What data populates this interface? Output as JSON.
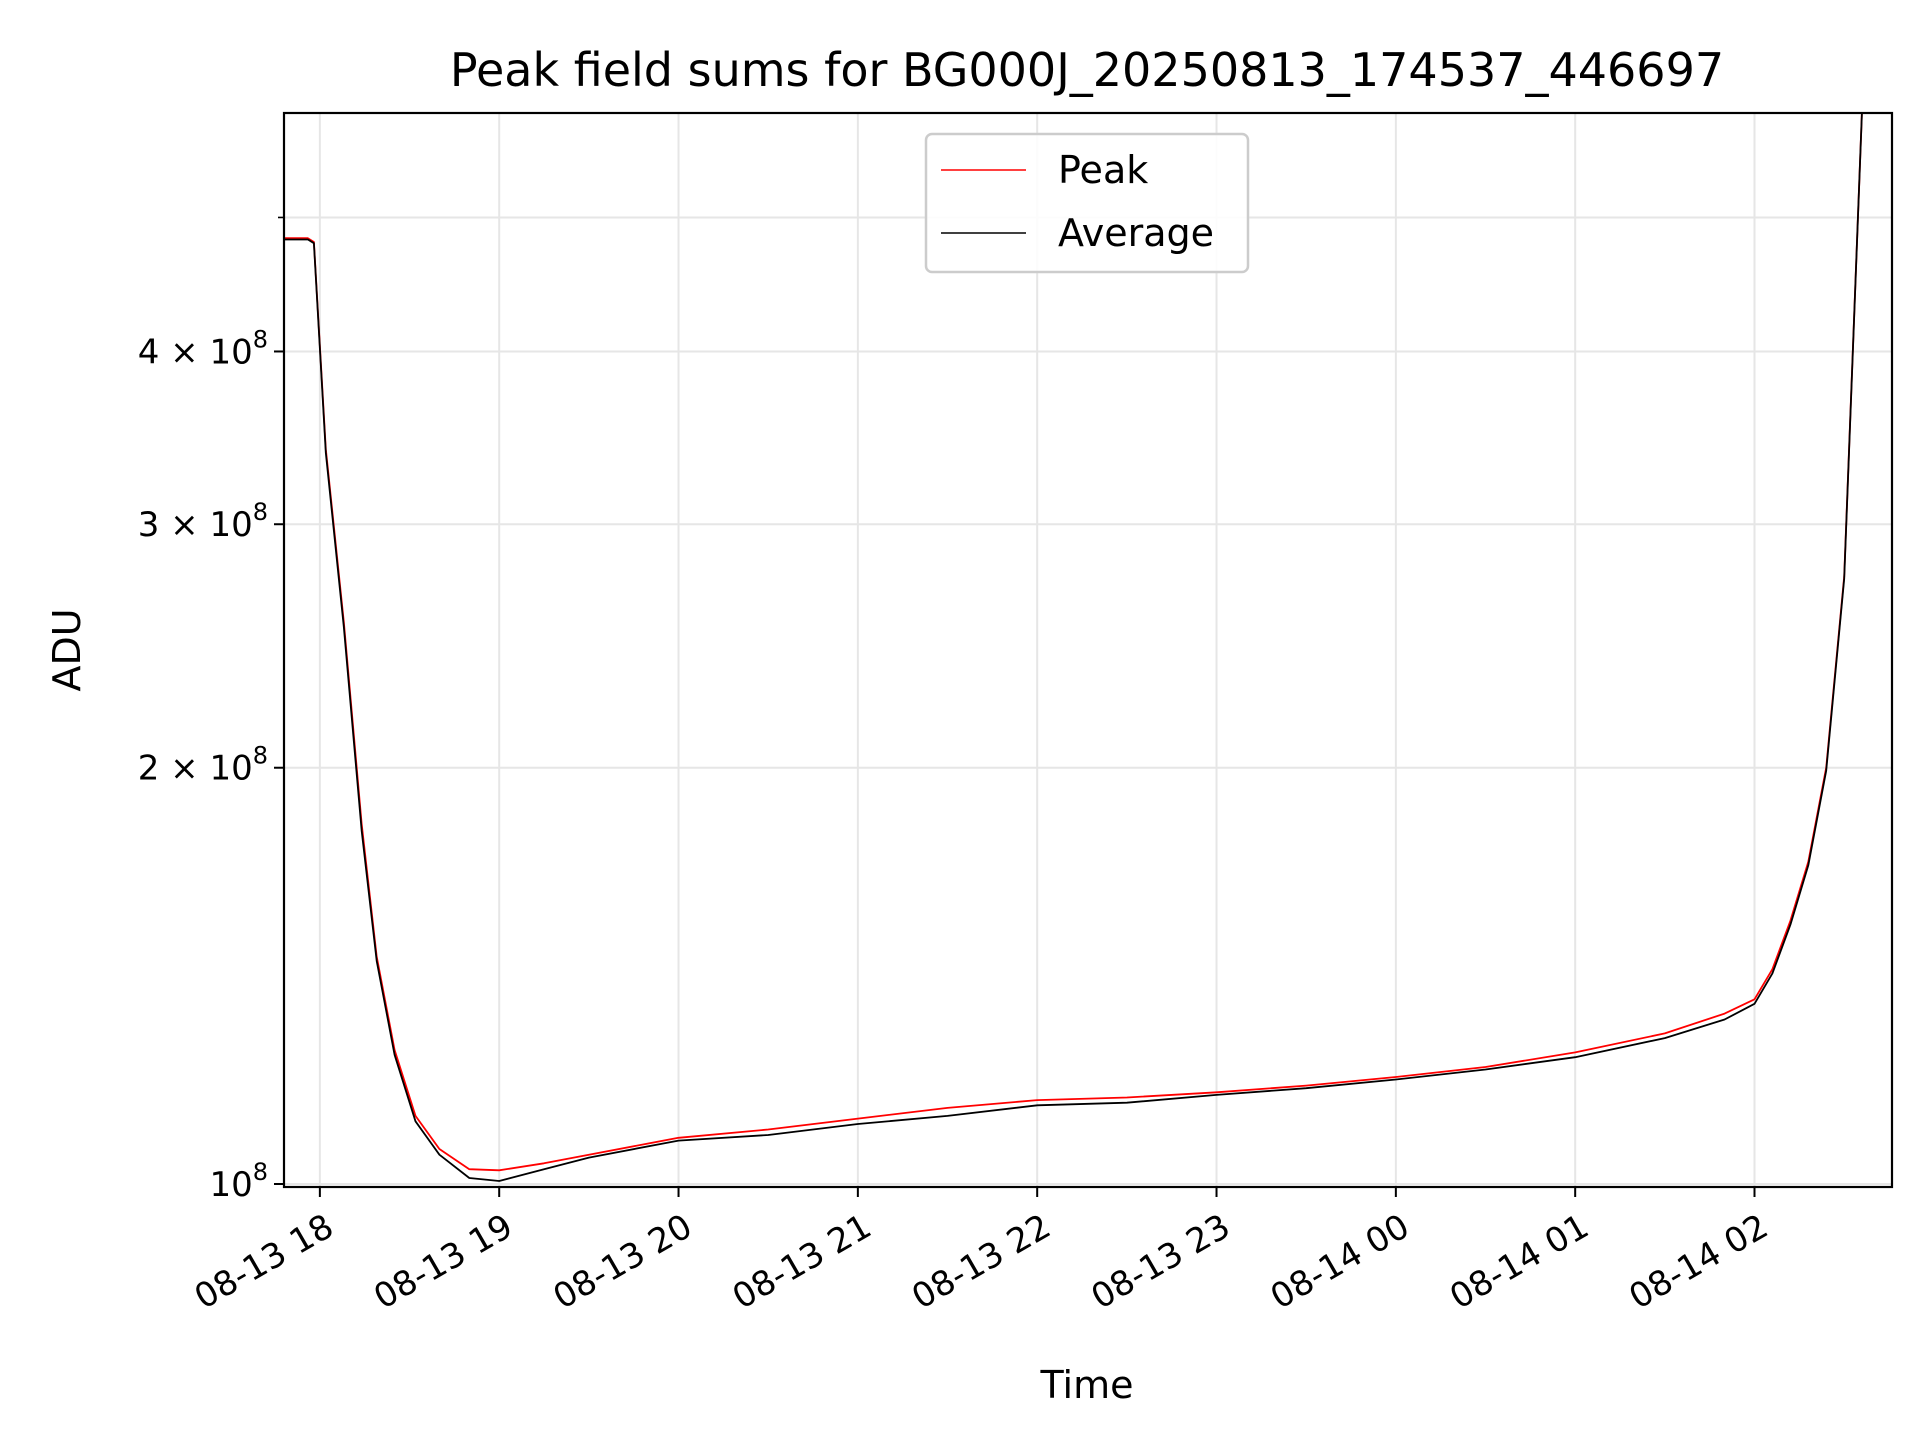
{
  "chart_data": {
    "type": "line",
    "title": "Peak field sums for BG000J_20250813_174537_446697",
    "xlabel": "Time",
    "ylabel": "ADU",
    "yscale": "log",
    "grid": true,
    "legend_position": "upper center",
    "xlim": [
      "2025-08-13 17:48",
      "2025-08-14 02:46"
    ],
    "ylim": [
      99500000,
      595000000
    ],
    "x_ticks": [
      {
        "t": "2025-08-13 18:00",
        "label": "08-13 18"
      },
      {
        "t": "2025-08-13 19:00",
        "label": "08-13 19"
      },
      {
        "t": "2025-08-13 20:00",
        "label": "08-13 20"
      },
      {
        "t": "2025-08-13 21:00",
        "label": "08-13 21"
      },
      {
        "t": "2025-08-13 22:00",
        "label": "08-13 22"
      },
      {
        "t": "2025-08-13 23:00",
        "label": "08-13 23"
      },
      {
        "t": "2025-08-14 00:00",
        "label": "08-14 00"
      },
      {
        "t": "2025-08-14 01:00",
        "label": "08-14 01"
      },
      {
        "t": "2025-08-14 02:00",
        "label": "08-14 02"
      }
    ],
    "y_ticks": [
      {
        "v": 100000000,
        "mant": "",
        "exp": "8",
        "prefix": "10"
      },
      {
        "v": 200000000,
        "mant": "2",
        "exp": "8",
        "prefix": "2 × 10"
      },
      {
        "v": 300000000,
        "mant": "3",
        "exp": "8",
        "prefix": "3 × 10"
      },
      {
        "v": 400000000,
        "mant": "4",
        "exp": "8",
        "prefix": "4 × 10"
      }
    ],
    "y_minor_ticks": [
      500000000
    ],
    "series": [
      {
        "name": "Peak",
        "color": "#ff0000",
        "x": [
          "2025-08-13 17:48",
          "2025-08-13 17:56",
          "2025-08-13 17:58",
          "2025-08-13 18:02",
          "2025-08-13 18:08",
          "2025-08-13 18:14",
          "2025-08-13 18:19",
          "2025-08-13 18:25",
          "2025-08-13 18:32",
          "2025-08-13 18:40",
          "2025-08-13 18:50",
          "2025-08-13 19:00",
          "2025-08-13 19:15",
          "2025-08-13 19:30",
          "2025-08-13 20:00",
          "2025-08-13 20:30",
          "2025-08-13 21:00",
          "2025-08-13 21:30",
          "2025-08-13 22:00",
          "2025-08-13 22:30",
          "2025-08-13 23:00",
          "2025-08-13 23:30",
          "2025-08-14 00:00",
          "2025-08-14 00:30",
          "2025-08-14 01:00",
          "2025-08-14 01:30",
          "2025-08-14 01:50",
          "2025-08-14 02:00",
          "2025-08-14 02:06",
          "2025-08-14 02:12",
          "2025-08-14 02:18",
          "2025-08-14 02:24",
          "2025-08-14 02:30",
          "2025-08-14 02:36"
        ],
        "y": [
          483000000,
          483000000,
          480000000,
          340000000,
          255000000,
          182000000,
          146000000,
          125000000,
          112000000,
          106000000,
          102500000,
          102300000,
          103500000,
          105000000,
          108000000,
          109500000,
          111500000,
          113500000,
          115000000,
          115500000,
          116500000,
          117800000,
          119500000,
          121500000,
          124500000,
          128500000,
          132800000,
          136000000,
          143000000,
          155000000,
          171000000,
          200000000,
          275000000,
          600000000
        ]
      },
      {
        "name": "Average",
        "color": "#000000",
        "x": [
          "2025-08-13 17:48",
          "2025-08-13 17:56",
          "2025-08-13 17:58",
          "2025-08-13 18:02",
          "2025-08-13 18:08",
          "2025-08-13 18:14",
          "2025-08-13 18:19",
          "2025-08-13 18:25",
          "2025-08-13 18:32",
          "2025-08-13 18:40",
          "2025-08-13 18:50",
          "2025-08-13 19:00",
          "2025-08-13 19:15",
          "2025-08-13 19:30",
          "2025-08-13 20:00",
          "2025-08-13 20:30",
          "2025-08-13 21:00",
          "2025-08-13 21:30",
          "2025-08-13 22:00",
          "2025-08-13 22:30",
          "2025-08-13 23:00",
          "2025-08-13 23:30",
          "2025-08-14 00:00",
          "2025-08-14 00:30",
          "2025-08-14 01:00",
          "2025-08-14 01:30",
          "2025-08-14 01:50",
          "2025-08-14 02:00",
          "2025-08-14 02:06",
          "2025-08-14 02:12",
          "2025-08-14 02:18",
          "2025-08-14 02:24",
          "2025-08-14 02:30",
          "2025-08-14 02:36"
        ],
        "y": [
          482000000,
          482000000,
          479000000,
          338000000,
          253000000,
          180000000,
          145000000,
          124000000,
          111000000,
          105000000,
          101000000,
          100500000,
          102500000,
          104500000,
          107500000,
          108500000,
          110500000,
          112000000,
          114000000,
          114500000,
          116000000,
          117300000,
          119000000,
          121000000,
          123500000,
          127500000,
          131500000,
          135000000,
          142000000,
          154000000,
          170000000,
          199000000,
          274000000,
          600000000
        ]
      }
    ]
  }
}
